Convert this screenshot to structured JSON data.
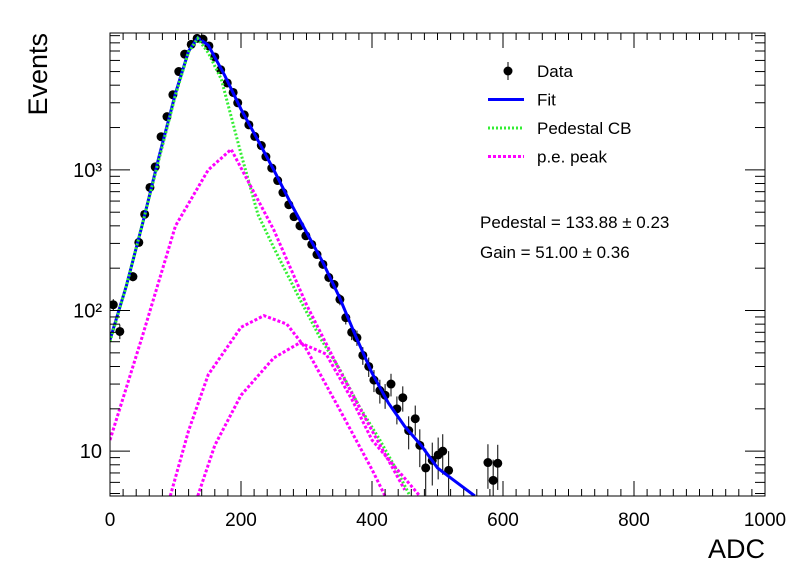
{
  "chart_data": {
    "type": "scatter",
    "xlabel": "ADC",
    "ylabel": "Events",
    "xlim": [
      0,
      1000
    ],
    "xticks": [
      0,
      200,
      400,
      600,
      800,
      1000
    ],
    "ylim": [
      4.8,
      9400
    ],
    "ylog": true,
    "yticks": [
      10,
      {
        "value": 100,
        "label": "10²"
      },
      {
        "value": 1000,
        "label": "10³"
      }
    ],
    "legend": "top-right",
    "annotations": [
      "Pedestal = 133.88 ± 0.23",
      "Gain = 51.00 ± 0.36"
    ],
    "series": [
      {
        "name": "Data",
        "kind": "errorbar",
        "color": "#000000",
        "x": [
          5,
          15,
          35,
          44,
          53,
          61,
          69,
          78,
          87,
          96,
          105,
          114,
          124,
          133,
          142,
          151,
          160,
          169,
          179,
          188,
          195,
          205,
          212,
          221,
          231,
          238,
          247,
          256,
          264,
          273,
          281,
          290,
          299,
          308,
          316,
          325,
          334,
          342,
          351,
          360,
          369,
          377,
          386,
          395,
          403,
          412,
          420,
          429,
          438,
          447,
          456,
          466,
          473,
          482,
          492,
          501,
          508,
          517,
          577,
          585,
          592
        ],
        "values": [
          110,
          71,
          174,
          305,
          483,
          750,
          1050,
          1720,
          2390,
          3420,
          5000,
          6650,
          7800,
          8600,
          8500,
          7600,
          6350,
          5150,
          4150,
          3550,
          3000,
          2460,
          2090,
          1730,
          1490,
          1240,
          1030,
          840,
          690,
          565,
          465,
          400,
          340,
          295,
          250,
          213,
          172,
          153,
          120,
          89,
          70,
          64,
          48,
          40,
          32,
          27,
          25,
          30,
          20,
          24,
          14,
          17,
          11,
          7.6,
          8.6,
          9.4,
          10,
          7.3,
          8.3,
          6.2,
          8.2
        ],
        "errors": [
          10.5,
          8.4,
          13,
          17,
          22,
          27,
          32,
          41,
          49,
          58,
          71,
          82,
          88,
          93,
          92,
          87,
          80,
          72,
          64,
          60,
          55,
          50,
          46,
          42,
          39,
          35,
          32,
          29,
          26,
          24,
          22,
          20,
          18,
          17,
          16,
          15,
          13,
          12,
          11,
          9.4,
          8.4,
          8,
          6.9,
          6.3,
          5.7,
          5.2,
          5,
          5.5,
          4.5,
          4.9,
          3.7,
          4.1,
          3.3,
          2.8,
          2.9,
          3.1,
          3.2,
          2.7,
          2.9,
          2.5,
          2.9
        ]
      },
      {
        "name": "Fit",
        "kind": "line",
        "color": "#0000ff",
        "x": [
          0,
          25,
          50,
          75,
          100,
          120,
          134,
          150,
          175,
          200,
          225,
          250,
          275,
          300,
          325,
          350,
          375,
          400,
          425,
          450,
          475,
          500,
          525,
          557
        ],
        "values": [
          62,
          150,
          420,
          1250,
          3500,
          7000,
          8700,
          7700,
          4700,
          2700,
          1650,
          1000,
          590,
          360,
          220,
          125,
          66,
          36,
          22,
          15,
          11,
          7.6,
          6.2,
          4.8
        ]
      },
      {
        "name": "Pedestal CB",
        "kind": "line",
        "color": "#33ee33",
        "x": [
          0,
          25,
          50,
          75,
          100,
          120,
          134,
          150,
          170,
          200,
          226,
          250,
          290,
          320,
          351,
          380,
          412,
          440,
          458
        ],
        "values": [
          60,
          150,
          420,
          1200,
          3400,
          6900,
          8600,
          6800,
          4400,
          1300,
          480,
          280,
          120,
          65,
          38,
          21,
          12,
          7,
          4.8
        ]
      },
      {
        "name": "p.e. peak",
        "kind": "line",
        "color": "#ff00ff",
        "x": [
          0,
          50,
          100,
          150,
          185,
          250,
          300,
          350,
          400,
          450
        ],
        "values": [
          12,
          67,
          400,
          1000,
          1400,
          375,
          110,
          38,
          14,
          5.3
        ]
      },
      {
        "kind": "line",
        "color": "#ff00ff",
        "x": [
          92,
          120,
          150,
          200,
          235,
          270,
          300,
          350,
          400,
          420
        ],
        "values": [
          4.8,
          14,
          35,
          76,
          92,
          80,
          53,
          20,
          7.4,
          4.8
        ]
      },
      {
        "kind": "line",
        "color": "#ff00ff",
        "x": [
          134,
          160,
          200,
          250,
          290,
          330,
          370,
          400,
          473
        ],
        "values": [
          4.8,
          11,
          25,
          46,
          59,
          49,
          23,
          12,
          4.8
        ]
      }
    ]
  }
}
